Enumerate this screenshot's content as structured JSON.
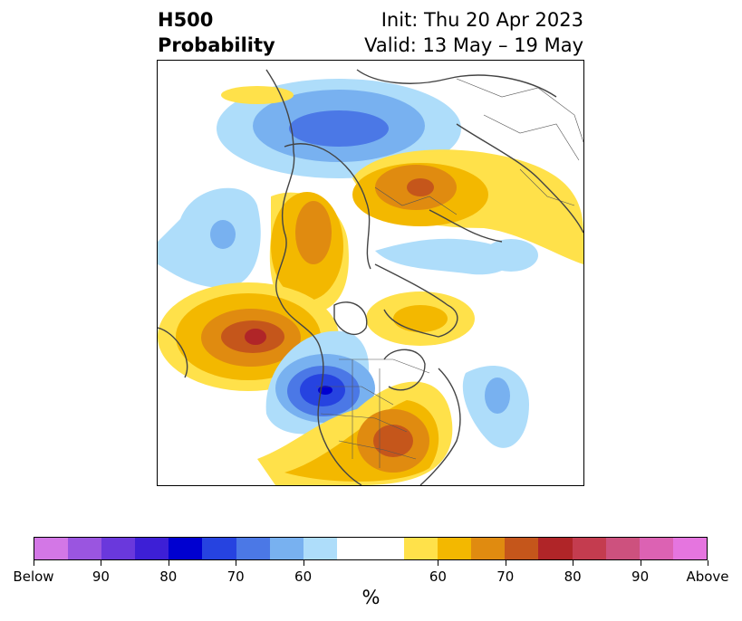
{
  "header": {
    "title_line1": "H500",
    "title_line2": "Probability",
    "init": "Init: Thu 20 Apr 2023",
    "valid": "Valid: 13 May – 19 May"
  },
  "colorbar": {
    "colors": [
      "#d377e6",
      "#9a55e0",
      "#6a38dc",
      "#3d1fd6",
      "#0000d0",
      "#2643e0",
      "#4b78e6",
      "#78b1f0",
      "#aeddfa",
      "#ffffff",
      "#ffffff",
      "#ffe14a",
      "#f3b800",
      "#e08b10",
      "#c5561b",
      "#b02528",
      "#c43c4f",
      "#cd517e",
      "#dc62b3",
      "#e575df"
    ],
    "labels": [
      "Below",
      "90",
      "80",
      "70",
      "60",
      "60",
      "70",
      "80",
      "90",
      "Above"
    ],
    "unit": "%"
  },
  "map": {
    "anomalies": [
      {
        "name": "blue-north-of-siberia",
        "sign": "below",
        "peak_percent": 70
      },
      {
        "name": "orange-scandinavia",
        "sign": "above",
        "peak_percent": 70
      },
      {
        "name": "orange-north-atlantic",
        "sign": "above",
        "peak_percent": 70
      },
      {
        "name": "blue-north-pacific",
        "sign": "below",
        "peak_percent": 60
      },
      {
        "name": "red-gulf-of-alaska",
        "sign": "above",
        "peak_percent": 80
      },
      {
        "name": "blue-western-north-america",
        "sign": "below",
        "peak_percent": 90
      },
      {
        "name": "orange-eastern-us",
        "sign": "above",
        "peak_percent": 70
      },
      {
        "name": "blue-central-atlantic",
        "sign": "below",
        "peak_percent": 60
      }
    ]
  }
}
